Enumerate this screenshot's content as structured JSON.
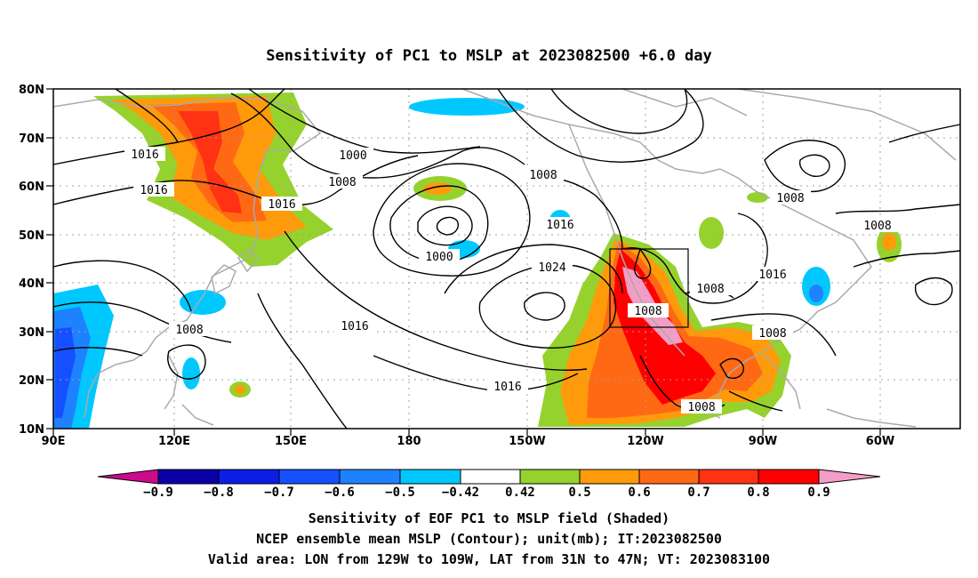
{
  "title": "Sensitivity of PC1 to MSLP at 2023082500 +6.0 day",
  "lat_labels": [
    "80N",
    "70N",
    "60N",
    "50N",
    "40N",
    "30N",
    "20N",
    "10N"
  ],
  "lon_labels": [
    "90E",
    "120E",
    "150E",
    "180",
    "150W",
    "120W",
    "90W",
    "60W"
  ],
  "contour_labels": [
    "1016",
    "1000",
    "1008",
    "1016",
    "1016",
    "1008",
    "1000",
    "1016",
    "1024",
    "1008",
    "1016",
    "1016",
    "1008",
    "1008",
    "1008",
    "1016",
    "1008",
    "1008"
  ],
  "colorbar": {
    "ticks": [
      "−0.9",
      "−0.8",
      "−0.7",
      "−0.6",
      "−0.5",
      "−0.42",
      "0.42",
      "0.5",
      "0.6",
      "0.7",
      "0.8",
      "0.9"
    ],
    "colors": [
      "#cc0a8c",
      "#0a00a8",
      "#0a1ee6",
      "#1450ff",
      "#1e82ff",
      "#00c8ff",
      "#ffffff",
      "#96d22d",
      "#ff9b0a",
      "#ff6914",
      "#ff3214",
      "#ff0000",
      "#f39ec6"
    ]
  },
  "captions": [
    "Sensitivity of EOF PC1 to MSLP field (Shaded)",
    "NCEP ensemble mean MSLP (Contour); unit(mb); IT:2023082500",
    "Valid area: LON from 129W to 109W, LAT from 31N to 47N; VT: 2023083100"
  ]
}
